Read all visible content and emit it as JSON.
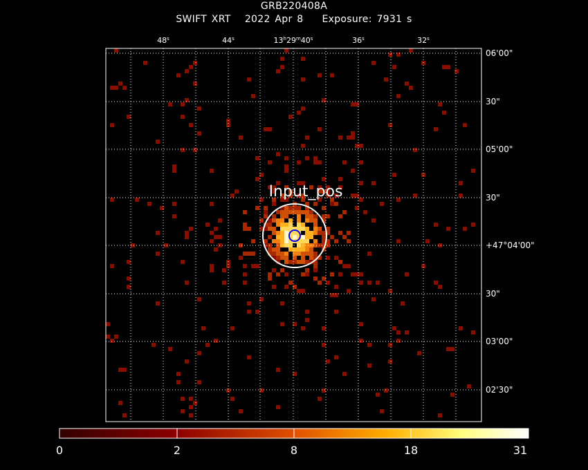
{
  "header": {
    "title": "GRB220408A",
    "instrument": "SWIFT XRT",
    "date": "2022 Apr  8",
    "exposure": "Exposure: 7931 s"
  },
  "ra_labels": [
    {
      "main": "48",
      "sup": "s"
    },
    {
      "main": "44",
      "sup": "s"
    },
    {
      "pre": "13",
      "sup1": "h",
      "mid": "29",
      "sup2": "m",
      "main": "40",
      "sup": "s"
    },
    {
      "main": "36",
      "sup": "s"
    },
    {
      "main": "32",
      "sup": "s"
    }
  ],
  "dec_labels": [
    "06'00\"",
    "30\"",
    "05'00\"",
    "30\"",
    "+47°04'00\"",
    "30\"",
    "03'00\"",
    "02'30\""
  ],
  "source_label": "Input_pos",
  "colorbar": {
    "tick_labels": [
      "0",
      "2",
      "8",
      "18",
      "31"
    ],
    "colors": [
      "#320000",
      "#8c0000",
      "#e05000",
      "#ffb000",
      "#ffff80",
      "#ffffff"
    ]
  },
  "colors": {
    "background": "#000000",
    "grid": "#ffffff",
    "source_circle": "#ffffff",
    "center_circle": "#0000ff"
  }
}
